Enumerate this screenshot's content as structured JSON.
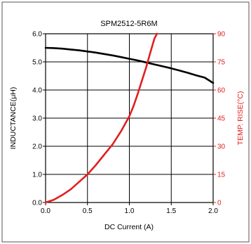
{
  "chart_data": {
    "type": "line",
    "title": "SPM2512-5R6M",
    "xlabel": "DC Current (A)",
    "ylabel": "INDUCTANCE(μH)",
    "y2label": "TEMP. RISE(°C)",
    "xlim": [
      0,
      2.0
    ],
    "ylim": [
      0,
      6.0
    ],
    "y2lim": [
      0,
      90
    ],
    "x_ticks": [
      0,
      0.5,
      1.0,
      1.5,
      2.0
    ],
    "x_tick_labels": [
      "0.0",
      "0.5",
      "1.0",
      "1.5",
      "2.0"
    ],
    "y_ticks": [
      0,
      1,
      2,
      3,
      4,
      5,
      6
    ],
    "y_tick_labels": [
      "0.0",
      "1.0",
      "2.0",
      "3.0",
      "4.0",
      "5.0",
      "6.0"
    ],
    "y2_ticks": [
      0,
      15,
      30,
      45,
      60,
      75,
      90
    ],
    "y2_tick_labels": [
      "0",
      "15",
      "30",
      "45",
      "60",
      "75",
      "90"
    ],
    "grid": true,
    "colors": {
      "inductance": "#000000",
      "temp_rise": "#e02020",
      "grid": "#000000",
      "frame": "#444444"
    },
    "series": [
      {
        "axis": "left",
        "color": "#000000",
        "x": [
          0,
          0.1,
          0.2,
          0.3,
          0.4,
          0.5,
          0.6,
          0.7,
          0.8,
          0.9,
          1.0,
          1.1,
          1.2,
          1.3,
          1.4,
          1.5,
          1.6,
          1.7,
          1.8,
          1.9,
          2.0
        ],
        "values": [
          5.5,
          5.49,
          5.47,
          5.44,
          5.41,
          5.37,
          5.33,
          5.28,
          5.23,
          5.17,
          5.11,
          5.05,
          4.98,
          4.91,
          4.84,
          4.77,
          4.69,
          4.61,
          4.52,
          4.44,
          4.25
        ]
      },
      {
        "axis": "right",
        "color": "#e02020",
        "x": [
          0,
          0.1,
          0.2,
          0.3,
          0.4,
          0.5,
          0.6,
          0.7,
          0.8,
          0.9,
          1.0,
          1.05,
          1.1,
          1.15,
          1.2,
          1.25,
          1.3,
          1.33
        ],
        "values": [
          0,
          1.5,
          4,
          7,
          11,
          15,
          20,
          25.5,
          31,
          38,
          46,
          51.5,
          58,
          65,
          72,
          80,
          87.5,
          91
        ]
      }
    ]
  }
}
